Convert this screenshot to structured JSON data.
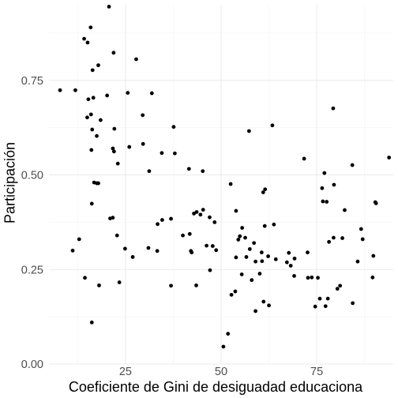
{
  "chart_data": {
    "type": "scatter",
    "title": "",
    "xlabel": "Coeficiente de Gini de desiguadad educaciona",
    "ylabel": "Participación",
    "xlim": [
      5,
      95
    ],
    "ylim": [
      0,
      0.95
    ],
    "x_ticks": [
      25,
      50,
      75
    ],
    "x_tick_labels": [
      "25",
      "50",
      "75"
    ],
    "y_ticks": [
      0,
      0.25,
      0.5,
      0.75
    ],
    "y_tick_labels": [
      "0.00",
      "0.25",
      "0.50",
      "0.75"
    ],
    "grid": true,
    "legend": "none",
    "point_color": "#000000",
    "points": [
      {
        "x": 7.9,
        "y": 0.724
      },
      {
        "x": 11.9,
        "y": 0.724
      },
      {
        "x": 11.2,
        "y": 0.3
      },
      {
        "x": 12.9,
        "y": 0.33
      },
      {
        "x": 14.2,
        "y": 0.86
      },
      {
        "x": 15.1,
        "y": 0.85
      },
      {
        "x": 15.9,
        "y": 0.89
      },
      {
        "x": 16.4,
        "y": 0.777
      },
      {
        "x": 17.9,
        "y": 0.79
      },
      {
        "x": 20.7,
        "y": 0.945
      },
      {
        "x": 21.9,
        "y": 0.823
      },
      {
        "x": 27.8,
        "y": 0.806
      },
      {
        "x": 15.0,
        "y": 0.652
      },
      {
        "x": 15.3,
        "y": 0.7
      },
      {
        "x": 16.0,
        "y": 0.66
      },
      {
        "x": 16.6,
        "y": 0.704
      },
      {
        "x": 18.5,
        "y": 0.645
      },
      {
        "x": 20.2,
        "y": 0.71
      },
      {
        "x": 22.1,
        "y": 0.622
      },
      {
        "x": 25.6,
        "y": 0.717
      },
      {
        "x": 29.5,
        "y": 0.658
      },
      {
        "x": 31.9,
        "y": 0.716
      },
      {
        "x": 16.3,
        "y": 0.62
      },
      {
        "x": 17.5,
        "y": 0.603
      },
      {
        "x": 16.1,
        "y": 0.566
      },
      {
        "x": 16.2,
        "y": 0.424
      },
      {
        "x": 16.8,
        "y": 0.48
      },
      {
        "x": 17.5,
        "y": 0.478
      },
      {
        "x": 17.9,
        "y": 0.478
      },
      {
        "x": 21.7,
        "y": 0.57
      },
      {
        "x": 22.0,
        "y": 0.562
      },
      {
        "x": 23.0,
        "y": 0.53
      },
      {
        "x": 26.0,
        "y": 0.574
      },
      {
        "x": 29.6,
        "y": 0.582
      },
      {
        "x": 31.2,
        "y": 0.51
      },
      {
        "x": 34.5,
        "y": 0.558
      },
      {
        "x": 37.6,
        "y": 0.627
      },
      {
        "x": 37.9,
        "y": 0.557
      },
      {
        "x": 21.0,
        "y": 0.385
      },
      {
        "x": 21.7,
        "y": 0.387
      },
      {
        "x": 22.8,
        "y": 0.34
      },
      {
        "x": 24.9,
        "y": 0.305
      },
      {
        "x": 26.9,
        "y": 0.283
      },
      {
        "x": 14.4,
        "y": 0.228
      },
      {
        "x": 16.2,
        "y": 0.11
      },
      {
        "x": 18.1,
        "y": 0.208
      },
      {
        "x": 23.4,
        "y": 0.216
      },
      {
        "x": 31.0,
        "y": 0.307
      },
      {
        "x": 33.3,
        "y": 0.299
      },
      {
        "x": 34.6,
        "y": 0.381
      },
      {
        "x": 33.4,
        "y": 0.37
      },
      {
        "x": 36.9,
        "y": 0.384
      },
      {
        "x": 36.9,
        "y": 0.207
      },
      {
        "x": 40.0,
        "y": 0.34
      },
      {
        "x": 41.6,
        "y": 0.516
      },
      {
        "x": 41.8,
        "y": 0.344
      },
      {
        "x": 42.1,
        "y": 0.299
      },
      {
        "x": 42.3,
        "y": 0.295
      },
      {
        "x": 42.9,
        "y": 0.398
      },
      {
        "x": 43.6,
        "y": 0.402
      },
      {
        "x": 43.5,
        "y": 0.208
      },
      {
        "x": 44.6,
        "y": 0.395
      },
      {
        "x": 45.3,
        "y": 0.408
      },
      {
        "x": 45.2,
        "y": 0.51
      },
      {
        "x": 46.2,
        "y": 0.313
      },
      {
        "x": 47.0,
        "y": 0.388
      },
      {
        "x": 47.8,
        "y": 0.312
      },
      {
        "x": 48.3,
        "y": 0.375
      },
      {
        "x": 48.7,
        "y": 0.301
      },
      {
        "x": 47.1,
        "y": 0.248
      },
      {
        "x": 50.6,
        "y": 0.046
      },
      {
        "x": 51.8,
        "y": 0.08
      },
      {
        "x": 52.5,
        "y": 0.476
      },
      {
        "x": 52.7,
        "y": 0.183
      },
      {
        "x": 53.7,
        "y": 0.192
      },
      {
        "x": 53.9,
        "y": 0.405
      },
      {
        "x": 53.9,
        "y": 0.282
      },
      {
        "x": 54.5,
        "y": 0.329
      },
      {
        "x": 54.9,
        "y": 0.338
      },
      {
        "x": 55.5,
        "y": 0.36
      },
      {
        "x": 55.4,
        "y": 0.237
      },
      {
        "x": 56.3,
        "y": 0.334
      },
      {
        "x": 56.6,
        "y": 0.283
      },
      {
        "x": 57.3,
        "y": 0.616
      },
      {
        "x": 57.5,
        "y": 0.304
      },
      {
        "x": 58.0,
        "y": 0.222
      },
      {
        "x": 58.6,
        "y": 0.32
      },
      {
        "x": 59.0,
        "y": 0.271
      },
      {
        "x": 59.0,
        "y": 0.14
      },
      {
        "x": 60.1,
        "y": 0.239
      },
      {
        "x": 60.6,
        "y": 0.295
      },
      {
        "x": 60.7,
        "y": 0.272
      },
      {
        "x": 61.1,
        "y": 0.165
      },
      {
        "x": 61.0,
        "y": 0.454
      },
      {
        "x": 61.5,
        "y": 0.462
      },
      {
        "x": 61.4,
        "y": 0.365
      },
      {
        "x": 62.3,
        "y": 0.285
      },
      {
        "x": 62.5,
        "y": 0.155
      },
      {
        "x": 63.4,
        "y": 0.631
      },
      {
        "x": 63.8,
        "y": 0.369
      },
      {
        "x": 64.3,
        "y": 0.277
      },
      {
        "x": 67.2,
        "y": 0.269
      },
      {
        "x": 67.7,
        "y": 0.294
      },
      {
        "x": 68.2,
        "y": 0.26
      },
      {
        "x": 69.1,
        "y": 0.233
      },
      {
        "x": 69.2,
        "y": 0.279
      },
      {
        "x": 71.7,
        "y": 0.543
      },
      {
        "x": 72.6,
        "y": 0.295
      },
      {
        "x": 72.7,
        "y": 0.228
      },
      {
        "x": 73.7,
        "y": 0.229
      },
      {
        "x": 74.6,
        "y": 0.152
      },
      {
        "x": 75.3,
        "y": 0.228
      },
      {
        "x": 75.8,
        "y": 0.173
      },
      {
        "x": 76.4,
        "y": 0.465
      },
      {
        "x": 76.6,
        "y": 0.43
      },
      {
        "x": 77.0,
        "y": 0.505
      },
      {
        "x": 77.3,
        "y": 0.153
      },
      {
        "x": 77.6,
        "y": 0.429
      },
      {
        "x": 77.9,
        "y": 0.173
      },
      {
        "x": 78.2,
        "y": 0.323
      },
      {
        "x": 79.3,
        "y": 0.676
      },
      {
        "x": 79.4,
        "y": 0.334
      },
      {
        "x": 79.5,
        "y": 0.474
      },
      {
        "x": 80.4,
        "y": 0.199
      },
      {
        "x": 81.1,
        "y": 0.207
      },
      {
        "x": 81.7,
        "y": 0.333
      },
      {
        "x": 82.3,
        "y": 0.407
      },
      {
        "x": 84.4,
        "y": 0.161
      },
      {
        "x": 84.3,
        "y": 0.526
      },
      {
        "x": 85.7,
        "y": 0.271
      },
      {
        "x": 86.6,
        "y": 0.357
      },
      {
        "x": 87.0,
        "y": 0.33
      },
      {
        "x": 89.6,
        "y": 0.229
      },
      {
        "x": 89.8,
        "y": 0.286
      },
      {
        "x": 90.3,
        "y": 0.428
      },
      {
        "x": 90.5,
        "y": 0.425
      },
      {
        "x": 93.9,
        "y": 0.546
      }
    ]
  }
}
